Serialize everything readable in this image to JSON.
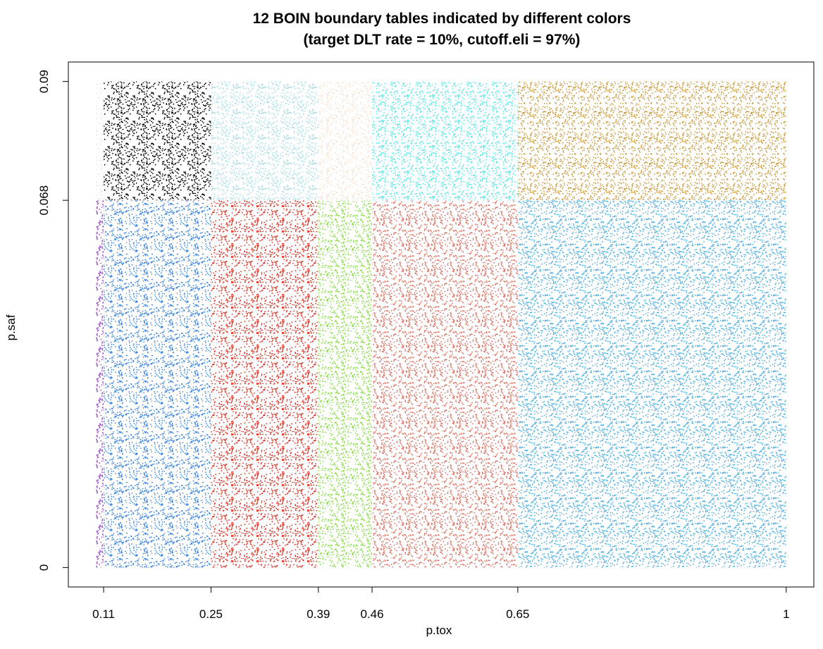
{
  "chart_data": {
    "type": "region-scatter",
    "title": "12 BOIN boundary tables indicated by different colors",
    "subtitle": "(target DLT rate = 10%, cutoff.eli = 97%)",
    "xlabel": "p.tox",
    "ylabel": "p.saf",
    "xlim": [
      0.064,
      1.036
    ],
    "ylim": [
      -0.0036,
      0.0936
    ],
    "xticks": [
      0.11,
      0.25,
      0.39,
      0.46,
      0.65,
      1
    ],
    "yticks": [
      0,
      0.068,
      0.09
    ],
    "regions": [
      {
        "color": "#ece6d8",
        "x": [
          0.1,
          0.11
        ],
        "y": [
          0.068,
          0.09
        ]
      },
      {
        "color": "#000000",
        "x": [
          0.11,
          0.25
        ],
        "y": [
          0.068,
          0.09
        ]
      },
      {
        "color": "#a8dce6",
        "x": [
          0.25,
          0.39
        ],
        "y": [
          0.068,
          0.09
        ]
      },
      {
        "color": "#f8e2d0",
        "x": [
          0.39,
          0.46
        ],
        "y": [
          0.068,
          0.09
        ]
      },
      {
        "color": "#62e4e4",
        "x": [
          0.46,
          0.65
        ],
        "y": [
          0.068,
          0.09
        ]
      },
      {
        "color": "#c89a3e",
        "x": [
          0.65,
          1
        ],
        "y": [
          0.068,
          0.09
        ]
      },
      {
        "color": "#9a48cc",
        "x": [
          0.1,
          0.11
        ],
        "y": [
          0,
          0.068
        ]
      },
      {
        "color": "#3f88e0",
        "x": [
          0.11,
          0.25
        ],
        "y": [
          0,
          0.068
        ]
      },
      {
        "color": "#e4301f",
        "x": [
          0.25,
          0.39
        ],
        "y": [
          0,
          0.068
        ]
      },
      {
        "color": "#88dc48",
        "x": [
          0.39,
          0.46
        ],
        "y": [
          0,
          0.068
        ]
      },
      {
        "color": "#dc6e5e",
        "x": [
          0.46,
          0.65
        ],
        "y": [
          0,
          0.068
        ]
      },
      {
        "color": "#4eaee2",
        "x": [
          0.65,
          1
        ],
        "y": [
          0,
          0.068
        ]
      }
    ]
  }
}
